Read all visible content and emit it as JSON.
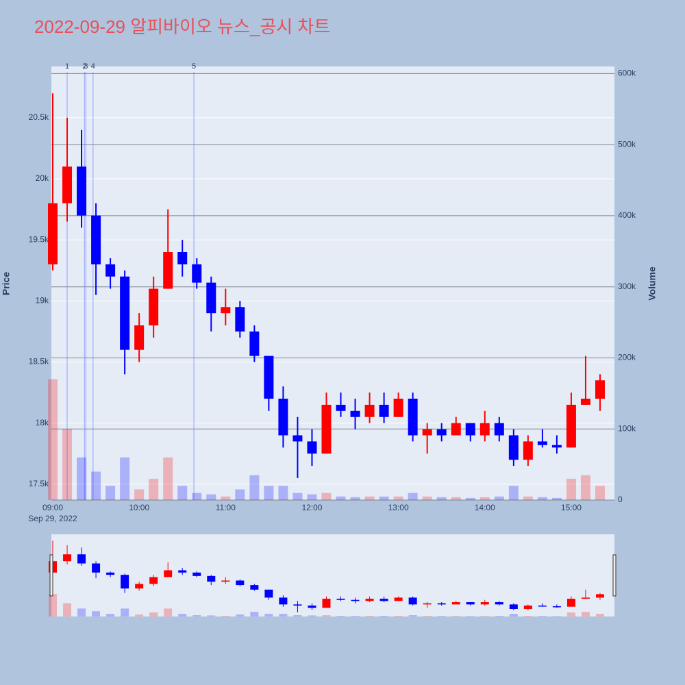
{
  "chart_data": {
    "type": "candlestick",
    "title": "2022-09-29 알피바이오 뉴스_공시 차트",
    "y_label": "Price",
    "y2_label": "Volume",
    "x_date_label": "Sep 29, 2022",
    "up_color": "#ff0000",
    "down_color": "#0000ff",
    "x": [
      "2022-09-29 09:00",
      "2022-09-29 09:10",
      "2022-09-29 09:20",
      "2022-09-29 09:30",
      "2022-09-29 09:40",
      "2022-09-29 09:50",
      "2022-09-29 10:00",
      "2022-09-29 10:10",
      "2022-09-29 10:20",
      "2022-09-29 10:30",
      "2022-09-29 10:40",
      "2022-09-29 10:50",
      "2022-09-29 11:00",
      "2022-09-29 11:10",
      "2022-09-29 11:20",
      "2022-09-29 11:30",
      "2022-09-29 11:40",
      "2022-09-29 11:50",
      "2022-09-29 12:00",
      "2022-09-29 12:10",
      "2022-09-29 12:20",
      "2022-09-29 12:30",
      "2022-09-29 12:40",
      "2022-09-29 12:50",
      "2022-09-29 13:00",
      "2022-09-29 13:10",
      "2022-09-29 13:20",
      "2022-09-29 13:30",
      "2022-09-29 13:40",
      "2022-09-29 13:50",
      "2022-09-29 14:00",
      "2022-09-29 14:10",
      "2022-09-29 14:20",
      "2022-09-29 14:30",
      "2022-09-29 14:40",
      "2022-09-29 14:50",
      "2022-09-29 15:00",
      "2022-09-29 15:10",
      "2022-09-29 15:20"
    ],
    "open": [
      19300,
      19800,
      20100,
      19700,
      19300,
      19200,
      18600,
      18800,
      19100,
      19400,
      19300,
      19150,
      18900,
      18950,
      18750,
      18550,
      18200,
      17900,
      17850,
      17750,
      18150,
      18100,
      18050,
      18150,
      18050,
      18200,
      17900,
      17950,
      17900,
      18000,
      17900,
      18000,
      17900,
      17700,
      17850,
      17820,
      17800,
      18150,
      18200
    ],
    "high": [
      20700,
      20500,
      20400,
      19800,
      19350,
      19250,
      18900,
      19200,
      19750,
      19500,
      19350,
      19200,
      19100,
      19000,
      18800,
      18550,
      18300,
      18050,
      17950,
      18250,
      18250,
      18200,
      18250,
      18250,
      18250,
      18250,
      18000,
      18000,
      18050,
      18000,
      18100,
      18050,
      17950,
      17900,
      17950,
      17900,
      18250,
      18550,
      18400
    ],
    "low": [
      19250,
      19650,
      19600,
      19050,
      19100,
      18400,
      18500,
      18700,
      19100,
      19200,
      19100,
      18750,
      18800,
      18700,
      18500,
      18100,
      17800,
      17550,
      17650,
      17750,
      18050,
      17950,
      18000,
      18000,
      18050,
      17850,
      17750,
      17850,
      17900,
      17850,
      17850,
      17850,
      17650,
      17650,
      17800,
      17750,
      17800,
      18150,
      18100
    ],
    "close": [
      19800,
      20100,
      19700,
      19300,
      19200,
      18600,
      18800,
      19100,
      19400,
      19300,
      19150,
      18900,
      18950,
      18750,
      18550,
      18200,
      17900,
      17850,
      17750,
      18150,
      18100,
      18050,
      18150,
      18050,
      18200,
      17900,
      17950,
      17900,
      18000,
      17900,
      18000,
      17900,
      17700,
      17850,
      17820,
      17800,
      18150,
      18200,
      18350
    ],
    "volume": [
      170000,
      100000,
      60000,
      40000,
      20000,
      60000,
      15000,
      30000,
      60000,
      20000,
      10000,
      8000,
      5000,
      15000,
      35000,
      20000,
      20000,
      10000,
      8000,
      10000,
      5000,
      4000,
      5000,
      5000,
      5000,
      10000,
      5000,
      4000,
      4000,
      3000,
      4000,
      5000,
      20000,
      5000,
      4000,
      3000,
      30000,
      35000,
      20000
    ],
    "events": [
      {
        "x": "2022-09-29 09:10",
        "label": "1"
      },
      {
        "x": "2022-09-29 09:22",
        "label": "2"
      },
      {
        "x": "2022-09-29 09:23",
        "label": "3"
      },
      {
        "x": "2022-09-29 09:28",
        "label": "4"
      },
      {
        "x": "2022-09-29 10:38",
        "label": "5"
      }
    ],
    "xlim": [
      "2022-09-29 09:00",
      "2022-09-29 15:30"
    ],
    "xticks": [
      {
        "value": "2022-09-29 09:00",
        "label": "09:00"
      },
      {
        "value": "2022-09-29 10:00",
        "label": "10:00"
      },
      {
        "value": "2022-09-29 11:00",
        "label": "11:00"
      },
      {
        "value": "2022-09-29 12:00",
        "label": "12:00"
      },
      {
        "value": "2022-09-29 13:00",
        "label": "13:00"
      },
      {
        "value": "2022-09-29 14:00",
        "label": "14:00"
      },
      {
        "value": "2022-09-29 15:00",
        "label": "15:00"
      }
    ],
    "ylim": [
      17370,
      20920
    ],
    "yticks": [
      {
        "value": 17500,
        "label": "17.5k"
      },
      {
        "value": 18000,
        "label": "18k"
      },
      {
        "value": 18500,
        "label": "18.5k"
      },
      {
        "value": 19000,
        "label": "19k"
      },
      {
        "value": 19500,
        "label": "19.5k"
      },
      {
        "value": 20000,
        "label": "20k"
      },
      {
        "value": 20500,
        "label": "20.5k"
      }
    ],
    "y2lim": [
      0,
      610000
    ],
    "y2ticks": [
      0,
      {
        "value": 100000,
        "label": "100k"
      },
      {
        "value": 200000,
        "label": "200k"
      },
      {
        "value": 300000,
        "label": "300k"
      },
      {
        "value": 400000,
        "label": "400k"
      },
      {
        "value": 500000,
        "label": "500k"
      },
      {
        "value": 600000,
        "label": "600k"
      }
    ],
    "grid": true
  }
}
